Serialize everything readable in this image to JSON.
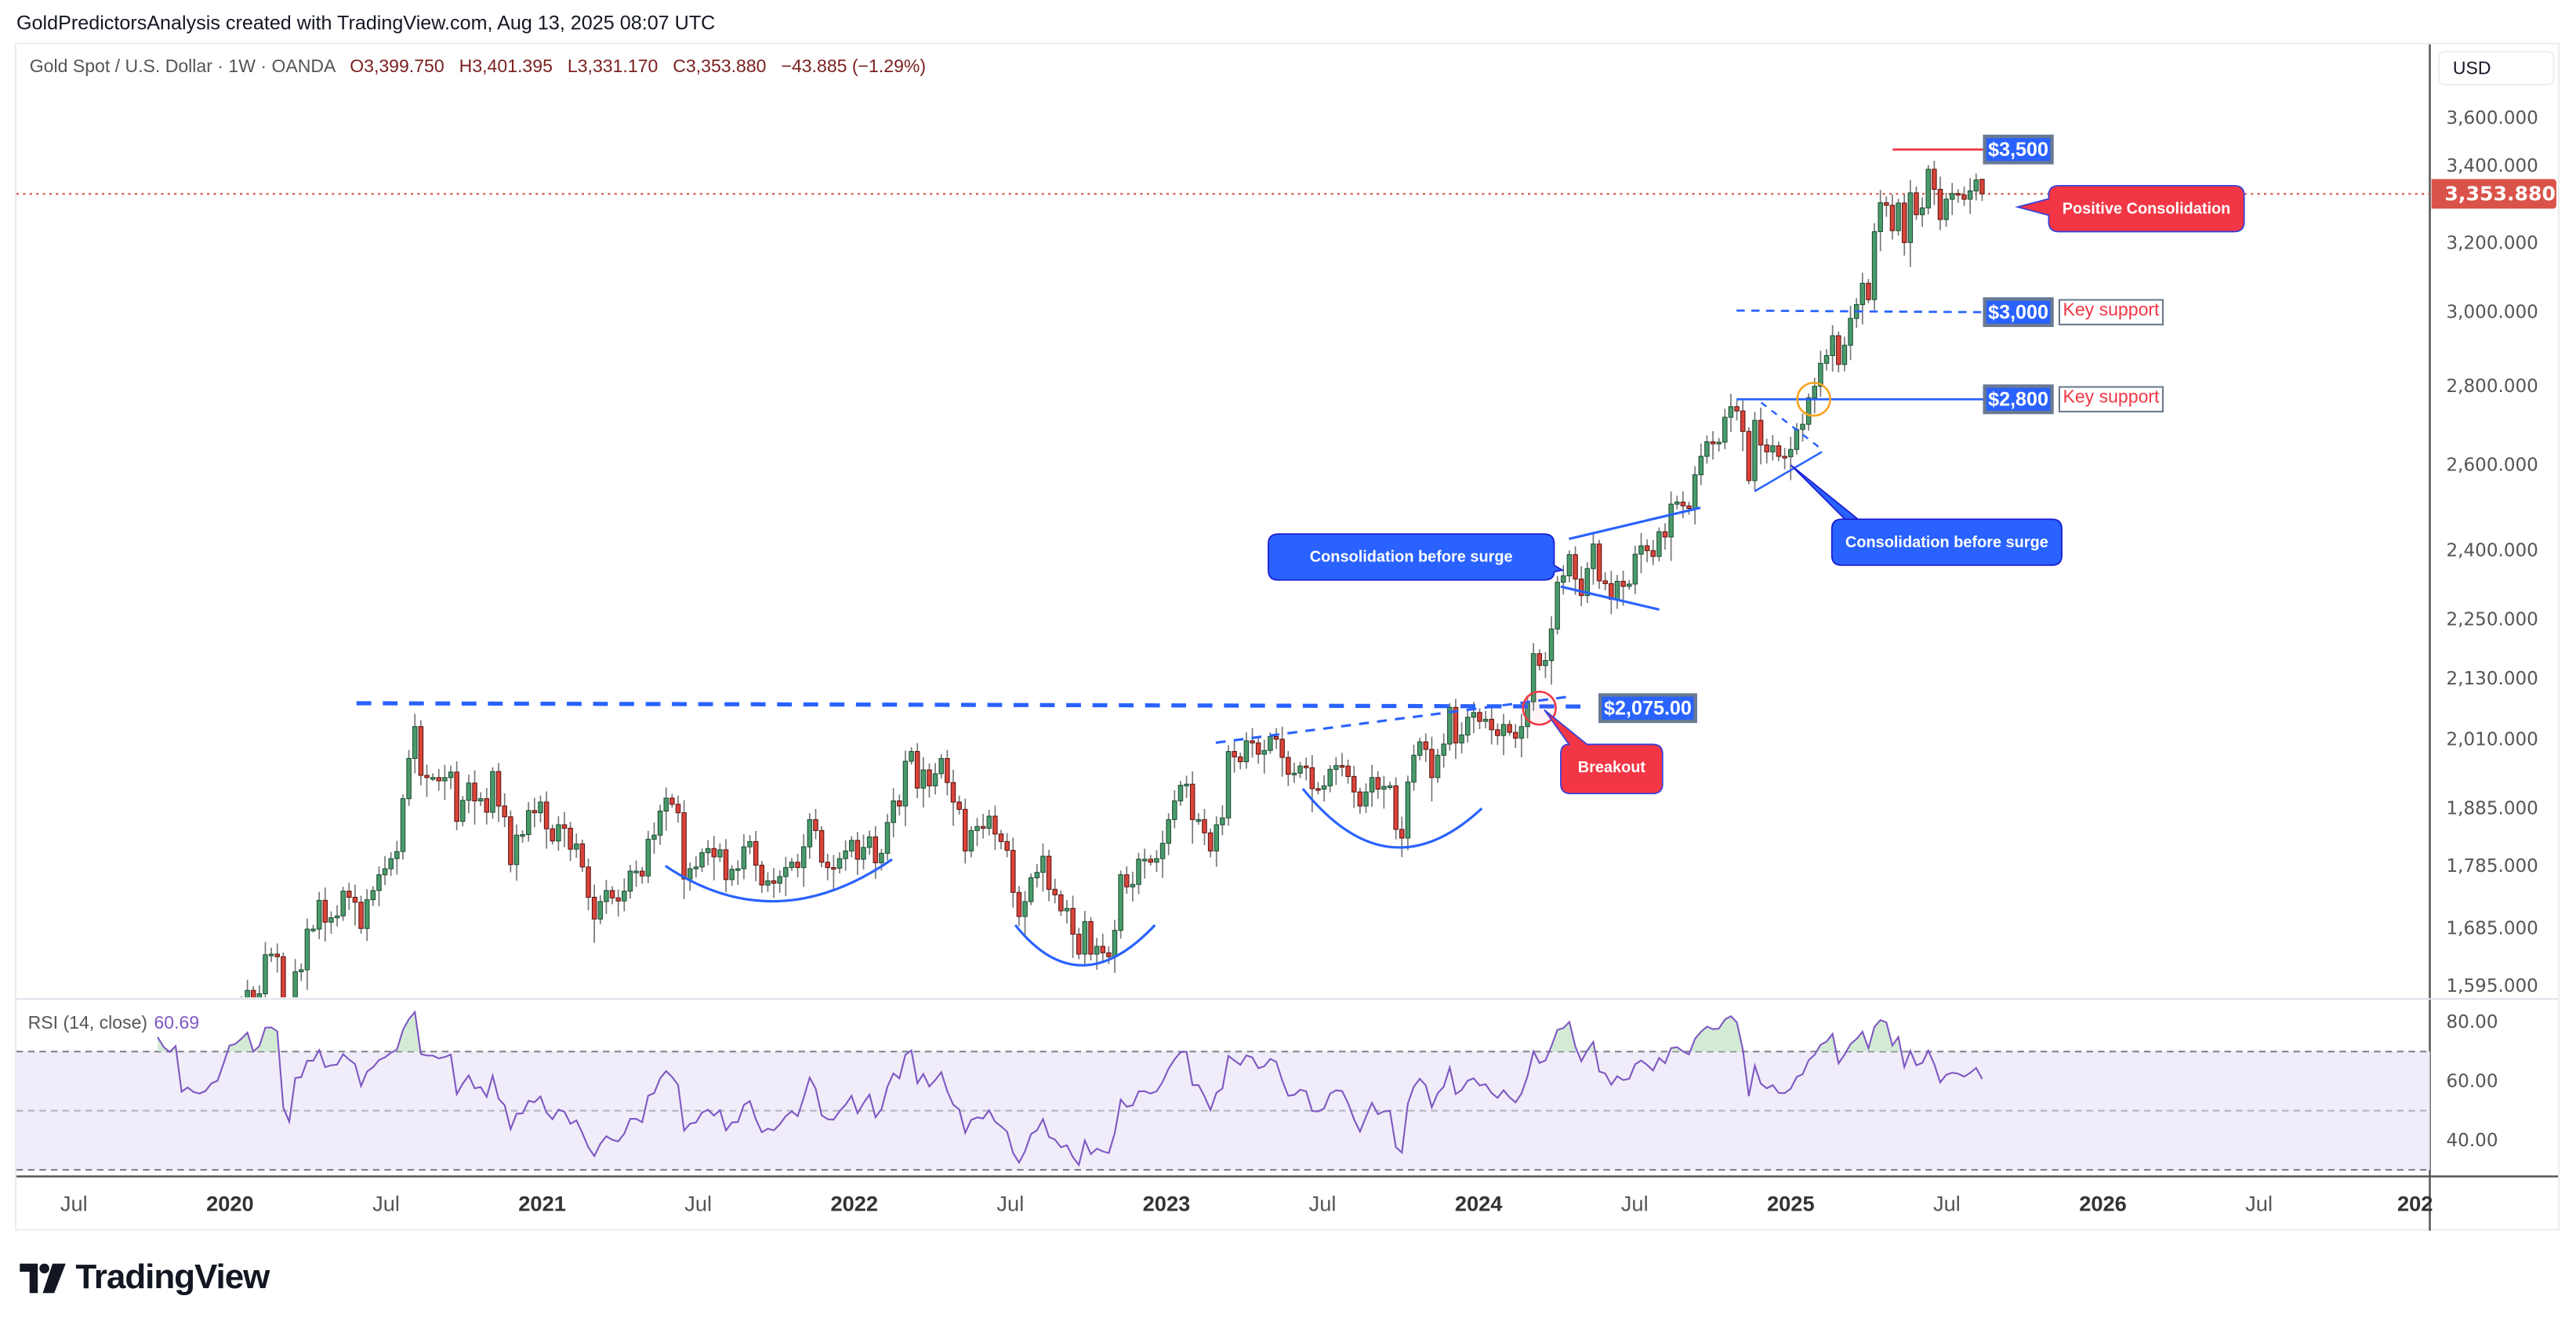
{
  "credit": "GoldPredictorsAnalysis created with TradingView.com, Aug 13, 2025 08:07 UTC",
  "legend": {
    "symbol": "Gold Spot / U.S. Dollar · 1W · OANDA",
    "open": "O3,399.750",
    "high": "H3,401.395",
    "low": "L3,331.170",
    "close": "C3,353.880",
    "change": "−43.885 (−1.29%)"
  },
  "price_axis": {
    "currency": "USD",
    "ticks": [
      "3,600.000",
      "3,400.000",
      "3,200.000",
      "3,000.000",
      "2,800.000",
      "2,600.000",
      "2,400.000",
      "2,250.000",
      "2,130.000",
      "2,010.000",
      "1,885.000",
      "1,785.000",
      "1,685.000",
      "1,595.000"
    ],
    "tick_values": [
      3600,
      3400,
      3200,
      3000,
      2800,
      2600,
      2400,
      2250,
      2130,
      2010,
      1885,
      1785,
      1685,
      1595
    ],
    "current_price": "3,353.880",
    "scale": "log"
  },
  "time_axis": {
    "labels": [
      {
        "text": "Jul",
        "year": false
      },
      {
        "text": "2020",
        "year": true
      },
      {
        "text": "Jul",
        "year": false
      },
      {
        "text": "2021",
        "year": true
      },
      {
        "text": "Jul",
        "year": false
      },
      {
        "text": "2022",
        "year": true
      },
      {
        "text": "Jul",
        "year": false
      },
      {
        "text": "2023",
        "year": true
      },
      {
        "text": "Jul",
        "year": false
      },
      {
        "text": "2024",
        "year": true
      },
      {
        "text": "Jul",
        "year": false
      },
      {
        "text": "2025",
        "year": true
      },
      {
        "text": "Jul",
        "year": false
      },
      {
        "text": "2026",
        "year": true
      },
      {
        "text": "Jul",
        "year": false
      },
      {
        "text": "202",
        "year": true
      }
    ]
  },
  "rsi": {
    "label": "RSI (14, close)",
    "value": "60.69",
    "ticks": [
      "80.00",
      "60.00",
      "40.00"
    ],
    "tick_values": [
      80,
      60,
      40
    ],
    "levels": [
      70,
      50,
      30
    ],
    "color": "#7e57c2"
  },
  "annotations": {
    "resistance_label": "$2,075.00",
    "breakout": "Breakout",
    "consolidation_1": "Consolidation before surge",
    "consolidation_2": "Consolidation before surge",
    "level_2800": "$2,800",
    "level_3000": "$3,000",
    "level_3500": "$3,500",
    "key_support_1": "Key support",
    "key_support_2": "Key support",
    "positive_consolidation": "Positive Consolidation"
  },
  "colors": {
    "up": "#4a9b6c",
    "down": "#d9443a",
    "annotation_blue": "#2962ff",
    "annotation_red": "#f23645",
    "price_line": "#d9534a"
  },
  "brand": "TradingView",
  "chart_data": {
    "type": "candlestick",
    "interval": "1W",
    "start_week": "2019-07-01",
    "last_bar": {
      "open": 3399.75,
      "high": 3401.395,
      "low": 3331.17,
      "close": 3353.88
    },
    "ylim": [
      1595,
      3600
    ],
    "closes": [
      1400,
      1415,
      1425,
      1420,
      1440,
      1497,
      1510,
      1527,
      1525,
      1529,
      1506,
      1488,
      1500,
      1490,
      1515,
      1505,
      1500,
      1514,
      1460,
      1468,
      1462,
      1460,
      1464,
      1476,
      1480,
      1510,
      1552,
      1557,
      1571,
      1589,
      1570,
      1584,
      1643,
      1644,
      1640,
      1530,
      1498,
      1617,
      1620,
      1683,
      1683,
      1729,
      1694,
      1701,
      1704,
      1744,
      1734,
      1726,
      1684,
      1730,
      1745,
      1771,
      1781,
      1798,
      1810,
      1902,
      1975,
      2035,
      1944,
      1940,
      1940,
      1934,
      1940,
      1950,
      1862,
      1899,
      1930,
      1898,
      1902,
      1878,
      1951,
      1889,
      1870,
      1788,
      1838,
      1839,
      1881,
      1877,
      1896,
      1849,
      1828,
      1856,
      1850,
      1814,
      1823,
      1784,
      1734,
      1699,
      1727,
      1745,
      1733,
      1728,
      1744,
      1777,
      1777,
      1769,
      1831,
      1838,
      1880,
      1903,
      1892,
      1877,
      1764,
      1781,
      1784,
      1808,
      1815,
      1801,
      1813,
      1763,
      1780,
      1781,
      1818,
      1827,
      1787,
      1754,
      1761,
      1757,
      1768,
      1783,
      1792,
      1783,
      1818,
      1865,
      1846,
      1792,
      1783,
      1782,
      1798,
      1811,
      1829,
      1797,
      1817,
      1835,
      1791,
      1807,
      1860,
      1898,
      1889,
      1970,
      1988,
      1921,
      1954,
      1925,
      1947,
      1975,
      1931,
      1896,
      1883,
      1811,
      1846,
      1853,
      1850,
      1871,
      1840,
      1827,
      1812,
      1742,
      1703,
      1727,
      1766,
      1775,
      1802,
      1747,
      1738,
      1712,
      1716,
      1675,
      1644,
      1695,
      1644,
      1656,
      1646,
      1640,
      1681,
      1771,
      1751,
      1755,
      1797,
      1797,
      1792,
      1798,
      1824,
      1865,
      1898,
      1926,
      1928,
      1865,
      1865,
      1842,
      1811,
      1856,
      1868,
      1988,
      1978,
      1969,
      2008,
      2004,
      1983,
      1990,
      2016,
      2011,
      1977,
      1946,
      1948,
      1961,
      1958,
      1920,
      1919,
      1925,
      1955,
      1962,
      1961,
      1942,
      1914,
      1889,
      1914,
      1940,
      1919,
      1924,
      1925,
      1848,
      1833,
      1932,
      1981,
      2006,
      1992,
      1940,
      1981,
      2002,
      2072,
      2004,
      2019,
      2053,
      2062,
      2045,
      2049,
      2029,
      2018,
      2039,
      2024,
      2013,
      2035,
      2083,
      2179,
      2155,
      2165,
      2230,
      2330,
      2344,
      2391,
      2337,
      2301,
      2360,
      2415,
      2333,
      2327,
      2293,
      2332,
      2321,
      2326,
      2392,
      2411,
      2400,
      2387,
      2443,
      2431,
      2507,
      2512,
      2503,
      2497,
      2577,
      2622,
      2658,
      2653,
      2657,
      2720,
      2747,
      2736,
      2684,
      2563,
      2712,
      2650,
      2633,
      2648,
      2622,
      2621,
      2639,
      2689,
      2702,
      2770,
      2800,
      2861,
      2882,
      2936,
      2858,
      2910,
      2984,
      3023,
      3084,
      3037,
      3237,
      3326,
      3318,
      3240,
      3325,
      3204,
      3357,
      3289,
      3310,
      3432,
      3368,
      3274,
      3337,
      3355,
      3350,
      3337,
      3363,
      3398,
      3353.88
    ]
  }
}
